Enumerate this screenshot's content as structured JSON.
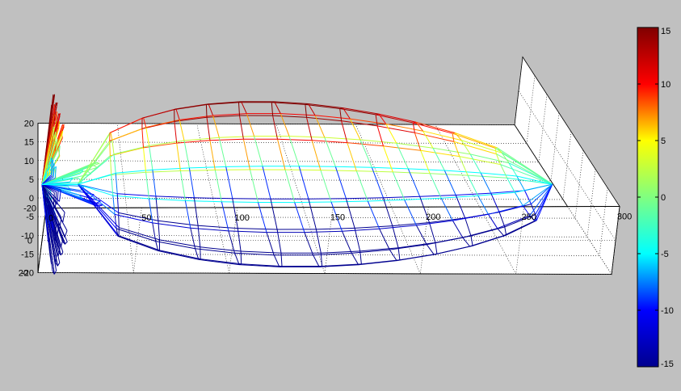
{
  "chart_data": {
    "type": "3d-wireframe-surface",
    "title": "",
    "xlabel": "",
    "ylabel": "",
    "zlabel": "",
    "x_axis": {
      "range": [
        0,
        300
      ],
      "ticks": [
        "0",
        "50",
        "100",
        "150",
        "200",
        "250",
        "300"
      ]
    },
    "y_axis": {
      "range": [
        -20,
        20
      ],
      "ticks": [
        "-20",
        "0",
        "20"
      ]
    },
    "z_axis": {
      "range": [
        -20,
        20
      ],
      "ticks": [
        "-20",
        "-15",
        "-10",
        "-5",
        "0",
        "5",
        "10",
        "15",
        "20"
      ]
    },
    "grid": true,
    "colorbar": {
      "position": "right",
      "range": [
        -15,
        15
      ],
      "ticks": [
        "15",
        "10",
        "5",
        "0",
        "-5",
        "-10",
        "-15"
      ],
      "colormap": "jet",
      "colors": [
        "#00008f",
        "#0000ff",
        "#00ffff",
        "#80ff80",
        "#ffff00",
        "#ff0000",
        "#800000"
      ]
    },
    "main_lobe": {
      "length": 285,
      "radius": 11,
      "rings": 13,
      "meridians": 16
    },
    "side_lobes": [
      {
        "reach": 55,
        "radius": 4
      },
      {
        "reach": 22,
        "radius": 11
      },
      {
        "reach": 18,
        "radius": 13
      },
      {
        "reach": 15,
        "radius": 15
      },
      {
        "reach": 12,
        "radius": 16.5
      }
    ],
    "surface_colors": {
      "wire_axis_value": 0
    }
  }
}
